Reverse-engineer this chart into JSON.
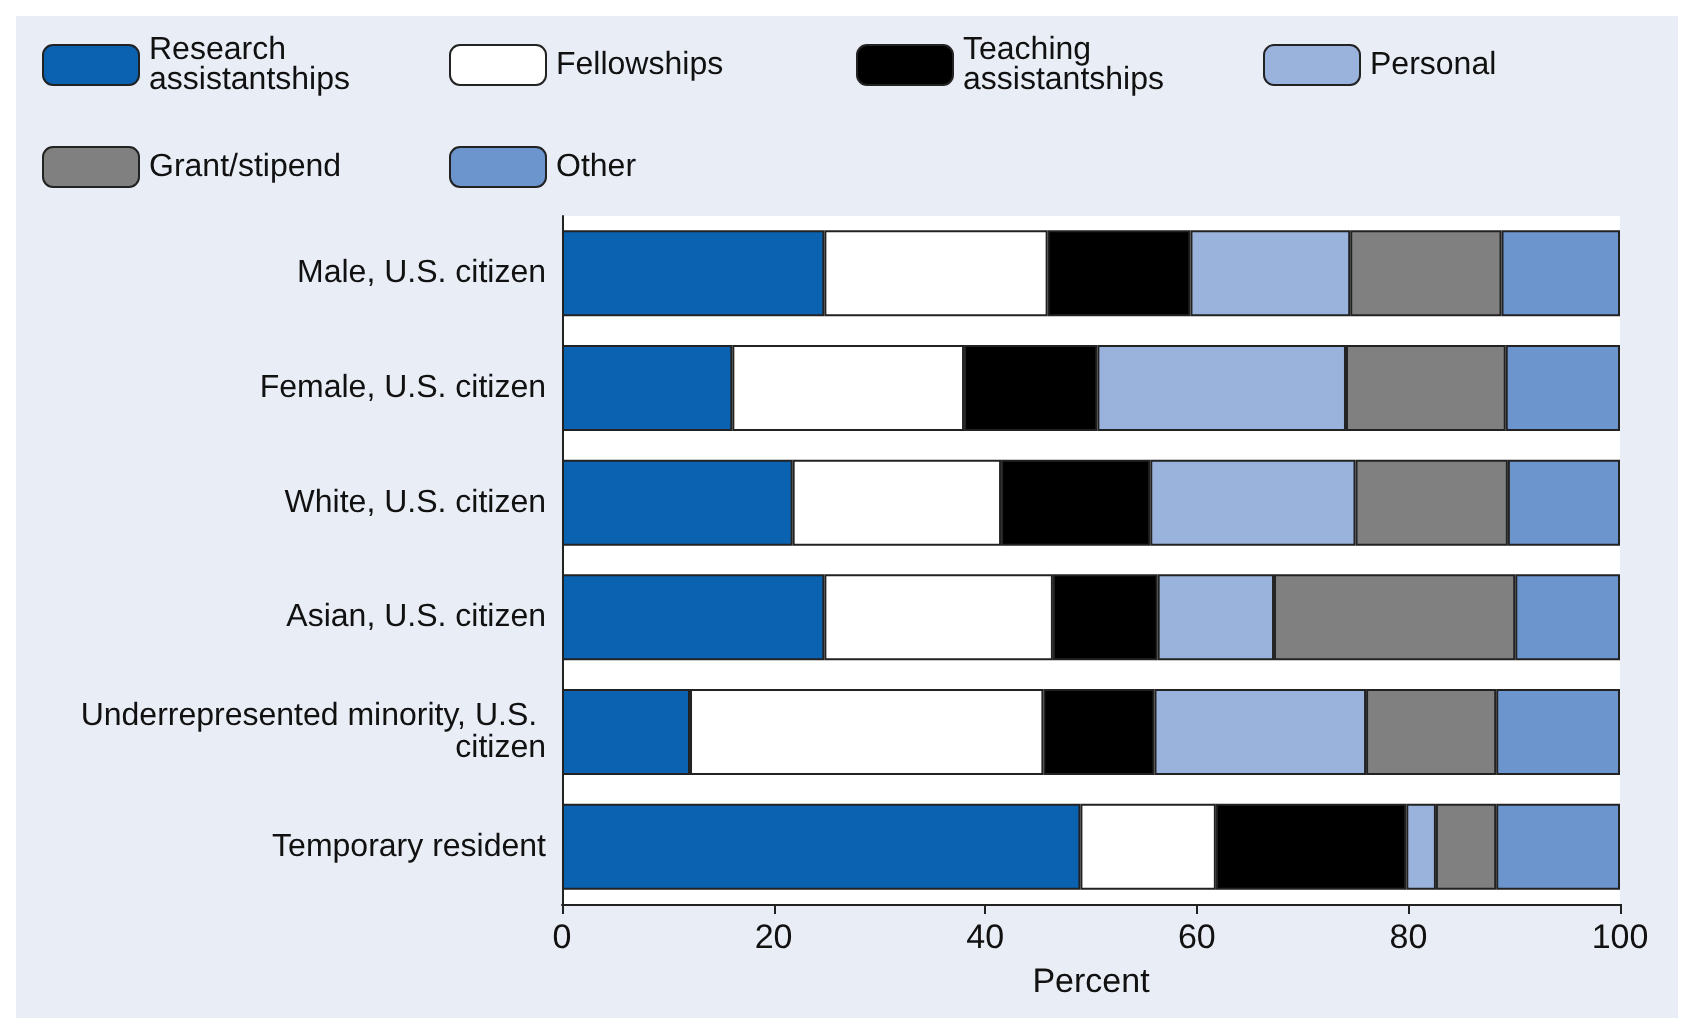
{
  "chart_data": {
    "type": "bar",
    "orientation": "horizontal",
    "stacked": true,
    "xlabel": "Percent",
    "categories": [
      "Male, U.S. citizen",
      "Female, U.S. citizen",
      "White, U.S. citizen",
      "Asian, U.S. citizen",
      "Underrepresented minority, U.S. citizen",
      "Temporary resident"
    ],
    "series": [
      {
        "name": "Research assistantships",
        "color": "#0a62b0",
        "values": [
          24.8,
          16.1,
          21.8,
          24.8,
          12.1,
          49.0
        ]
      },
      {
        "name": "Fellowships",
        "color": "#ffffff",
        "values": [
          21.1,
          21.9,
          19.7,
          21.6,
          33.4,
          12.8
        ]
      },
      {
        "name": "Teaching assistantships",
        "color": "#000000",
        "values": [
          13.5,
          12.6,
          14.1,
          9.9,
          10.5,
          18.0
        ]
      },
      {
        "name": "Personal",
        "color": "#9ab3dd",
        "values": [
          15.1,
          23.5,
          19.4,
          11.0,
          20.0,
          2.8
        ]
      },
      {
        "name": "Grant/stipend",
        "color": "#808080",
        "values": [
          14.3,
          15.1,
          14.4,
          22.8,
          12.3,
          5.7
        ]
      },
      {
        "name": "Other",
        "color": "#6b95cc",
        "values": [
          11.2,
          10.8,
          10.6,
          9.9,
          11.7,
          11.7
        ]
      }
    ],
    "xlim": [
      0,
      100
    ],
    "xticks": [
      0,
      20,
      40,
      60,
      80,
      100
    ],
    "grid": false,
    "legend": "top"
  }
}
